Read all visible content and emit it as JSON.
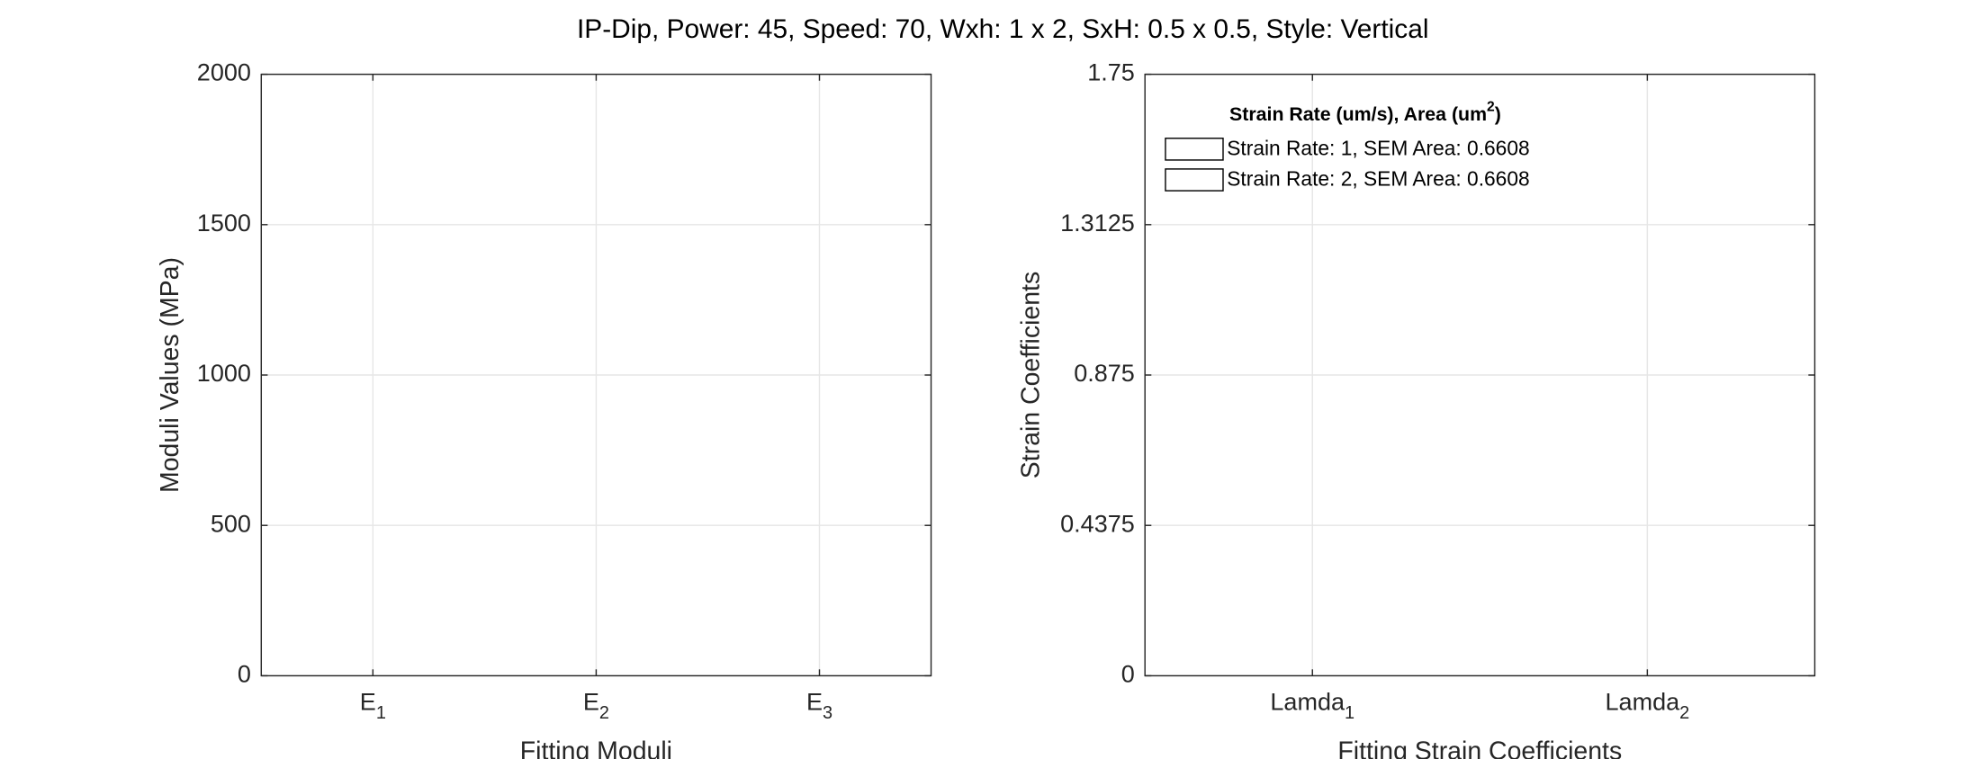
{
  "title": "IP-Dip, Power: 45, Speed: 70, Wxh: 1 x 2, SxH: 0.5 x 0.5, Style: Vertical",
  "chart_data": [
    {
      "type": "bar",
      "categories": [
        {
          "text": "E",
          "subscript": "1"
        },
        {
          "text": "E",
          "subscript": "2"
        },
        {
          "text": "E",
          "subscript": "3"
        }
      ],
      "xlim": [
        0.5,
        3.5
      ],
      "ylim": [
        0,
        2000
      ],
      "yticks": [
        0,
        500,
        1000,
        1500,
        2000
      ],
      "xlabel": "Fitting Moduli",
      "ylabel": "Moduli Values (MPa)",
      "grid": true
    },
    {
      "type": "bar",
      "categories": [
        {
          "text": "Lamda",
          "subscript": "1"
        },
        {
          "text": "Lamda",
          "subscript": "2"
        }
      ],
      "xlim": [
        0.5,
        2.5
      ],
      "ylim": [
        0,
        1.75
      ],
      "yticks": [
        0,
        0.4375,
        0.875,
        1.3125,
        1.75
      ],
      "xlabel": "Fitting Strain Coefficients",
      "ylabel": "Strain Coefficients",
      "grid": true,
      "legend": {
        "title": {
          "text": "Strain Rate (um/s), Area (um",
          "superscript": "2",
          "suffix": ")"
        },
        "location": "northwest"
      },
      "series": [
        {
          "name": "Strain Rate: 1, SEM Area: 0.6608",
          "color": "#ffffff",
          "edgecolor": "#000000",
          "values": [
            null,
            null
          ]
        },
        {
          "name": "Strain Rate: 2, SEM Area: 0.6608",
          "color": "#ffffff",
          "edgecolor": "#000000",
          "values": [
            null,
            null
          ]
        }
      ]
    }
  ]
}
